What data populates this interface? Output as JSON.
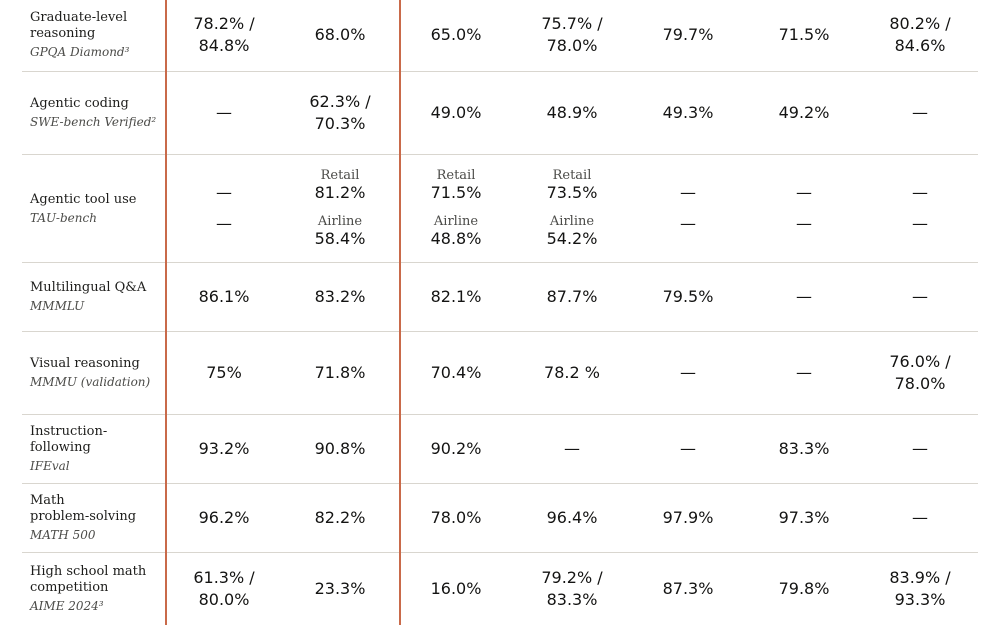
{
  "table": {
    "rows": [
      {
        "benchmark": "Graduate-level\nreasoning",
        "dataset": "GPQA Diamond³",
        "values": [
          "78.2% /\n84.8%",
          "68.0%",
          "65.0%",
          "75.7% /\n78.0%",
          "79.7%",
          "71.5%",
          "80.2% /\n84.6%"
        ]
      },
      {
        "benchmark": "Agentic coding",
        "dataset": "SWE-bench Verified²",
        "values": [
          "—",
          "62.3% /\n70.3%",
          "49.0%",
          "48.9%",
          "49.3%",
          "49.2%",
          "—"
        ]
      },
      {
        "benchmark": "Agentic tool use",
        "dataset": "TAU-bench",
        "split_values": [
          [
            {
              "label": "",
              "value": "—"
            },
            {
              "label": "",
              "value": "—"
            }
          ],
          [
            {
              "label": "Retail",
              "value": "81.2%"
            },
            {
              "label": "Airline",
              "value": "58.4%"
            }
          ],
          [
            {
              "label": "Retail",
              "value": "71.5%"
            },
            {
              "label": "Airline",
              "value": "48.8%"
            }
          ],
          [
            {
              "label": "Retail",
              "value": "73.5%"
            },
            {
              "label": "Airline",
              "value": "54.2%"
            }
          ],
          [
            {
              "label": "",
              "value": "—"
            },
            {
              "label": "",
              "value": "—"
            }
          ],
          [
            {
              "label": "",
              "value": "—"
            },
            {
              "label": "",
              "value": "—"
            }
          ],
          [
            {
              "label": "",
              "value": "—"
            },
            {
              "label": "",
              "value": "—"
            }
          ]
        ]
      },
      {
        "benchmark": "Multilingual Q&A",
        "dataset": "MMMLU",
        "values": [
          "86.1%",
          "83.2%",
          "82.1%",
          "87.7%",
          "79.5%",
          "—",
          "—"
        ]
      },
      {
        "benchmark": "Visual reasoning",
        "dataset": "MMMU (validation)",
        "values": [
          "75%",
          "71.8%",
          "70.4%",
          "78.2 %",
          "—",
          "—",
          "76.0% /\n78.0%"
        ]
      },
      {
        "benchmark": "Instruction-\nfollowing",
        "dataset": "IFEval",
        "values": [
          "93.2%",
          "90.8%",
          "90.2%",
          "—",
          "—",
          "83.3%",
          "—"
        ]
      },
      {
        "benchmark": "Math\nproblem-solving",
        "dataset": "MATH 500",
        "values": [
          "96.2%",
          "82.2%",
          "78.0%",
          "96.4%",
          "97.9%",
          "97.3%",
          "—"
        ]
      },
      {
        "benchmark": "High school math\ncompetition",
        "dataset": "AIME 2024³",
        "values": [
          "61.3% /\n80.0%",
          "23.3%",
          "16.0%",
          "79.2% /\n83.3%",
          "87.3%",
          "79.8%",
          "83.9% /\n93.3%"
        ]
      }
    ]
  }
}
